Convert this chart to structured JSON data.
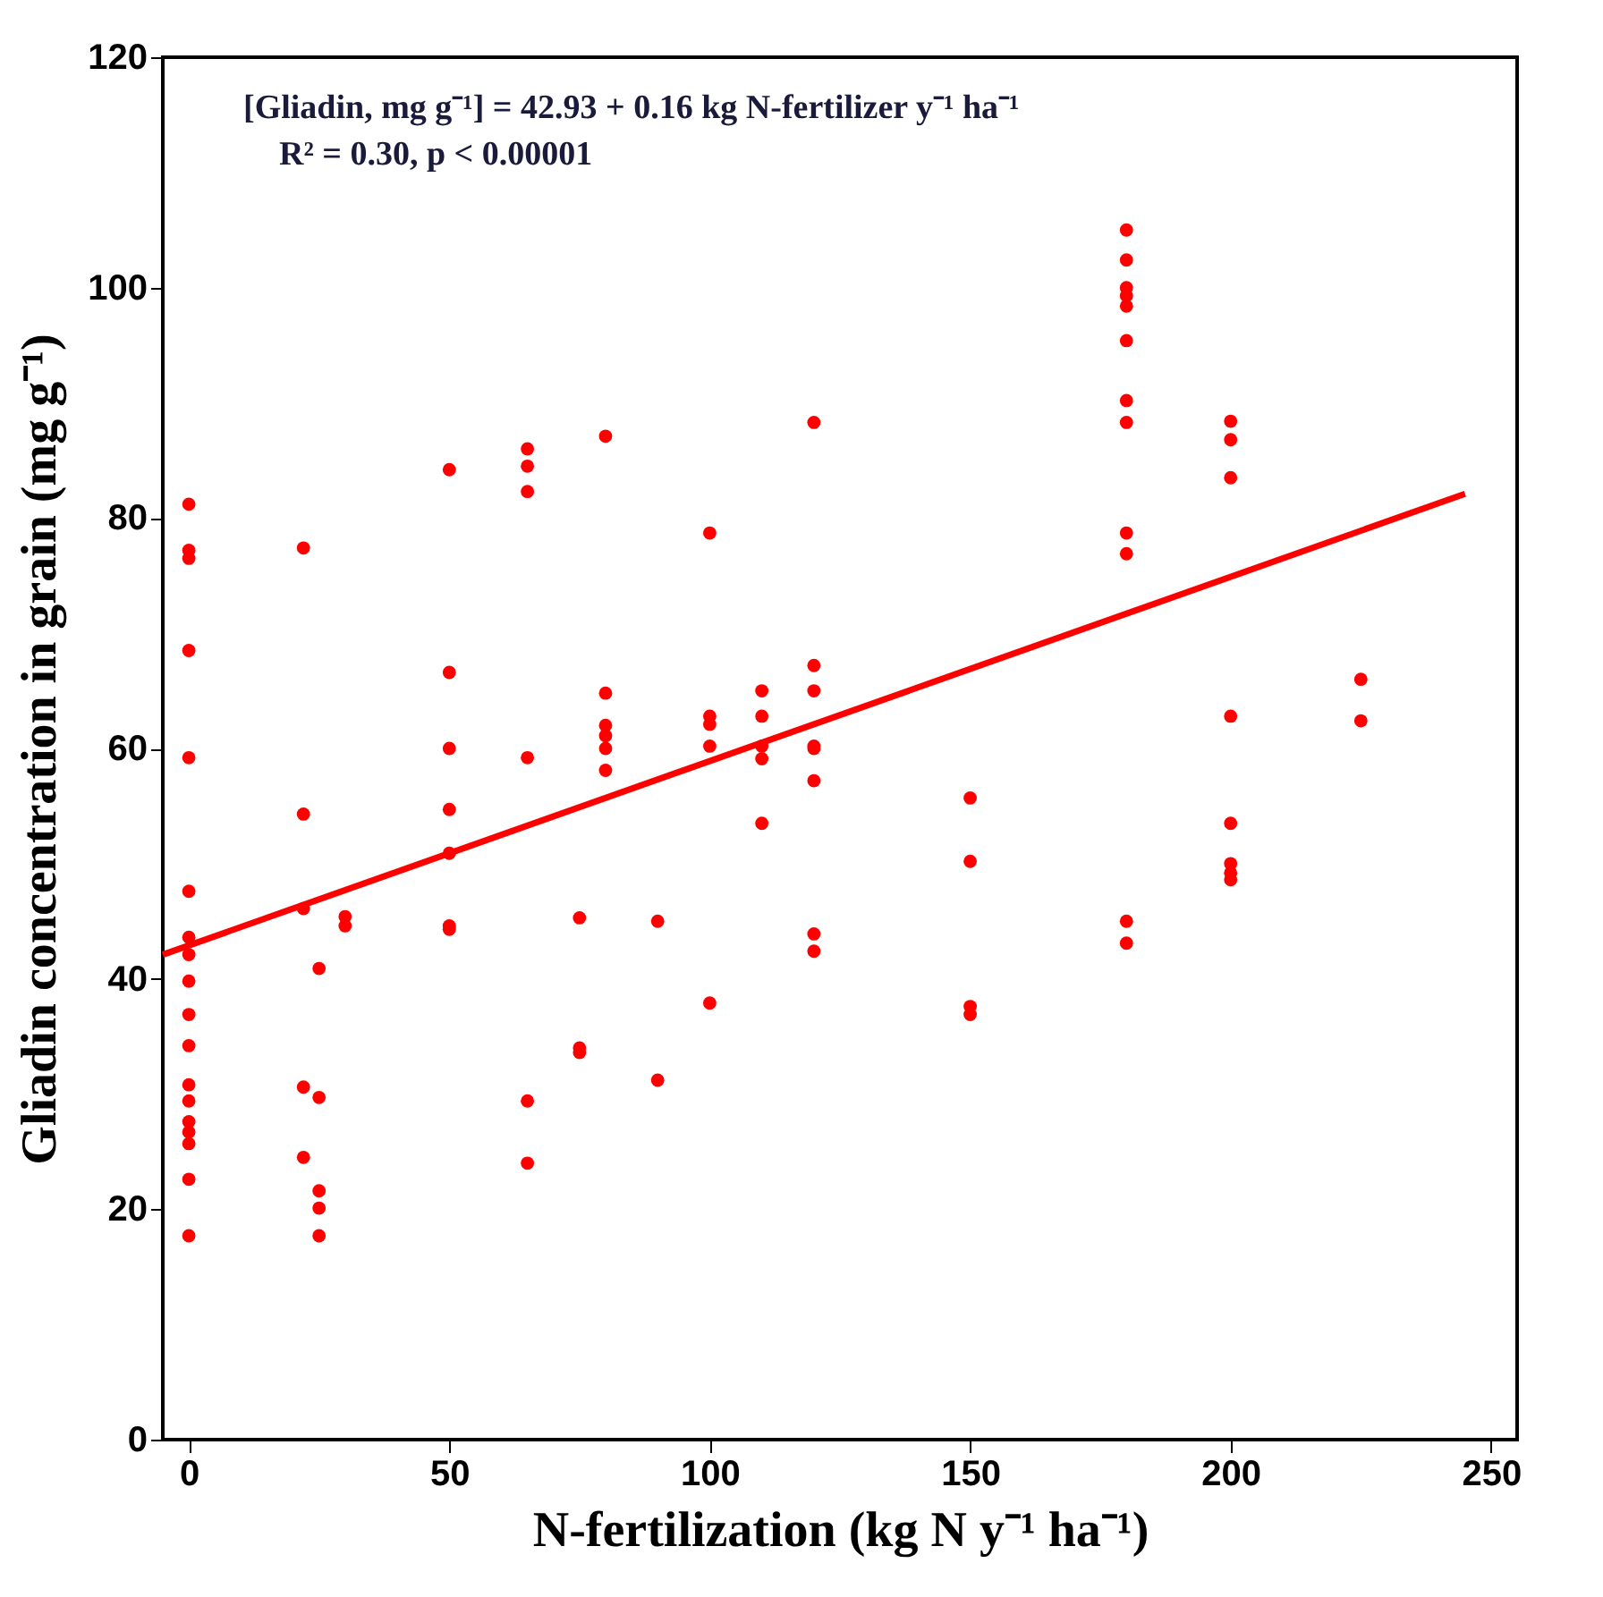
{
  "chart_data": {
    "type": "scatter",
    "xlabel": "N-fertilization (kg N y⁻¹ ha⁻¹)",
    "ylabel": "Gliadin concentration in grain (mg g⁻¹)",
    "annotations": [
      "[Gliadin, mg g⁻¹] = 42.93 + 0.16 kg N-fertilizer y⁻¹ ha⁻¹",
      "R² = 0.30, p < 0.00001"
    ],
    "xlim": [
      -5,
      255
    ],
    "xticks": [
      0,
      50,
      100,
      150,
      200,
      250
    ],
    "ylim": [
      0,
      120
    ],
    "yticks": [
      0,
      20,
      40,
      60,
      80,
      100,
      120
    ],
    "grid": false,
    "series": [
      {
        "type": "scatter",
        "marker": "circle",
        "color": "#ff0000",
        "x": [
          0,
          0,
          0,
          0,
          0,
          0,
          0,
          0,
          0,
          0,
          0,
          0,
          0,
          0,
          0,
          0,
          0,
          0,
          22,
          22,
          22,
          22,
          22,
          25,
          25,
          25,
          25,
          25,
          30,
          30,
          50,
          50,
          50,
          50,
          50,
          50,
          50,
          65,
          65,
          65,
          65,
          65,
          65,
          75,
          75,
          75,
          80,
          80,
          80,
          80,
          80,
          80,
          90,
          90,
          100,
          100,
          100,
          100,
          100,
          110,
          110,
          110,
          110,
          110,
          120,
          120,
          120,
          120,
          120,
          120,
          120,
          120,
          150,
          150,
          150,
          150,
          180,
          180,
          180,
          180,
          180,
          180,
          180,
          180,
          180,
          180,
          180,
          180,
          200,
          200,
          200,
          200,
          200,
          200,
          200,
          200,
          225,
          225
        ],
        "values": [
          81.2,
          77.2,
          76.5,
          68.5,
          59.2,
          47.6,
          43.6,
          42.1,
          39.8,
          36.9,
          34.2,
          30.8,
          29.4,
          27.6,
          26.7,
          25.7,
          22.6,
          17.7,
          77.4,
          54.3,
          46.1,
          30.6,
          24.5,
          40.9,
          29.7,
          21.6,
          20.1,
          17.7,
          45.4,
          44.6,
          84.2,
          66.6,
          60.0,
          54.7,
          50.9,
          44.6,
          44.3,
          86.0,
          84.5,
          82.3,
          59.2,
          29.4,
          24.0,
          45.3,
          34.0,
          33.6,
          87.1,
          64.8,
          62.0,
          61.1,
          60.0,
          58.1,
          45.0,
          31.2,
          78.7,
          62.8,
          62.1,
          60.2,
          37.9,
          65.0,
          62.8,
          60.2,
          59.1,
          53.5,
          88.3,
          67.2,
          65.0,
          60.2,
          60.0,
          57.2,
          43.9,
          42.4,
          55.7,
          50.2,
          37.6,
          36.9,
          105.0,
          102.4,
          100.0,
          99.3,
          98.4,
          95.4,
          90.2,
          88.3,
          78.7,
          76.9,
          45.0,
          43.1,
          88.4,
          86.8,
          83.5,
          62.8,
          53.5,
          50.0,
          49.2,
          48.6,
          66.0,
          62.4
        ]
      },
      {
        "type": "line",
        "marker": "none",
        "color": "#ff0000",
        "line_style": "solid",
        "x": [
          -5,
          245
        ],
        "values": [
          42.1,
          82.1
        ]
      }
    ]
  }
}
